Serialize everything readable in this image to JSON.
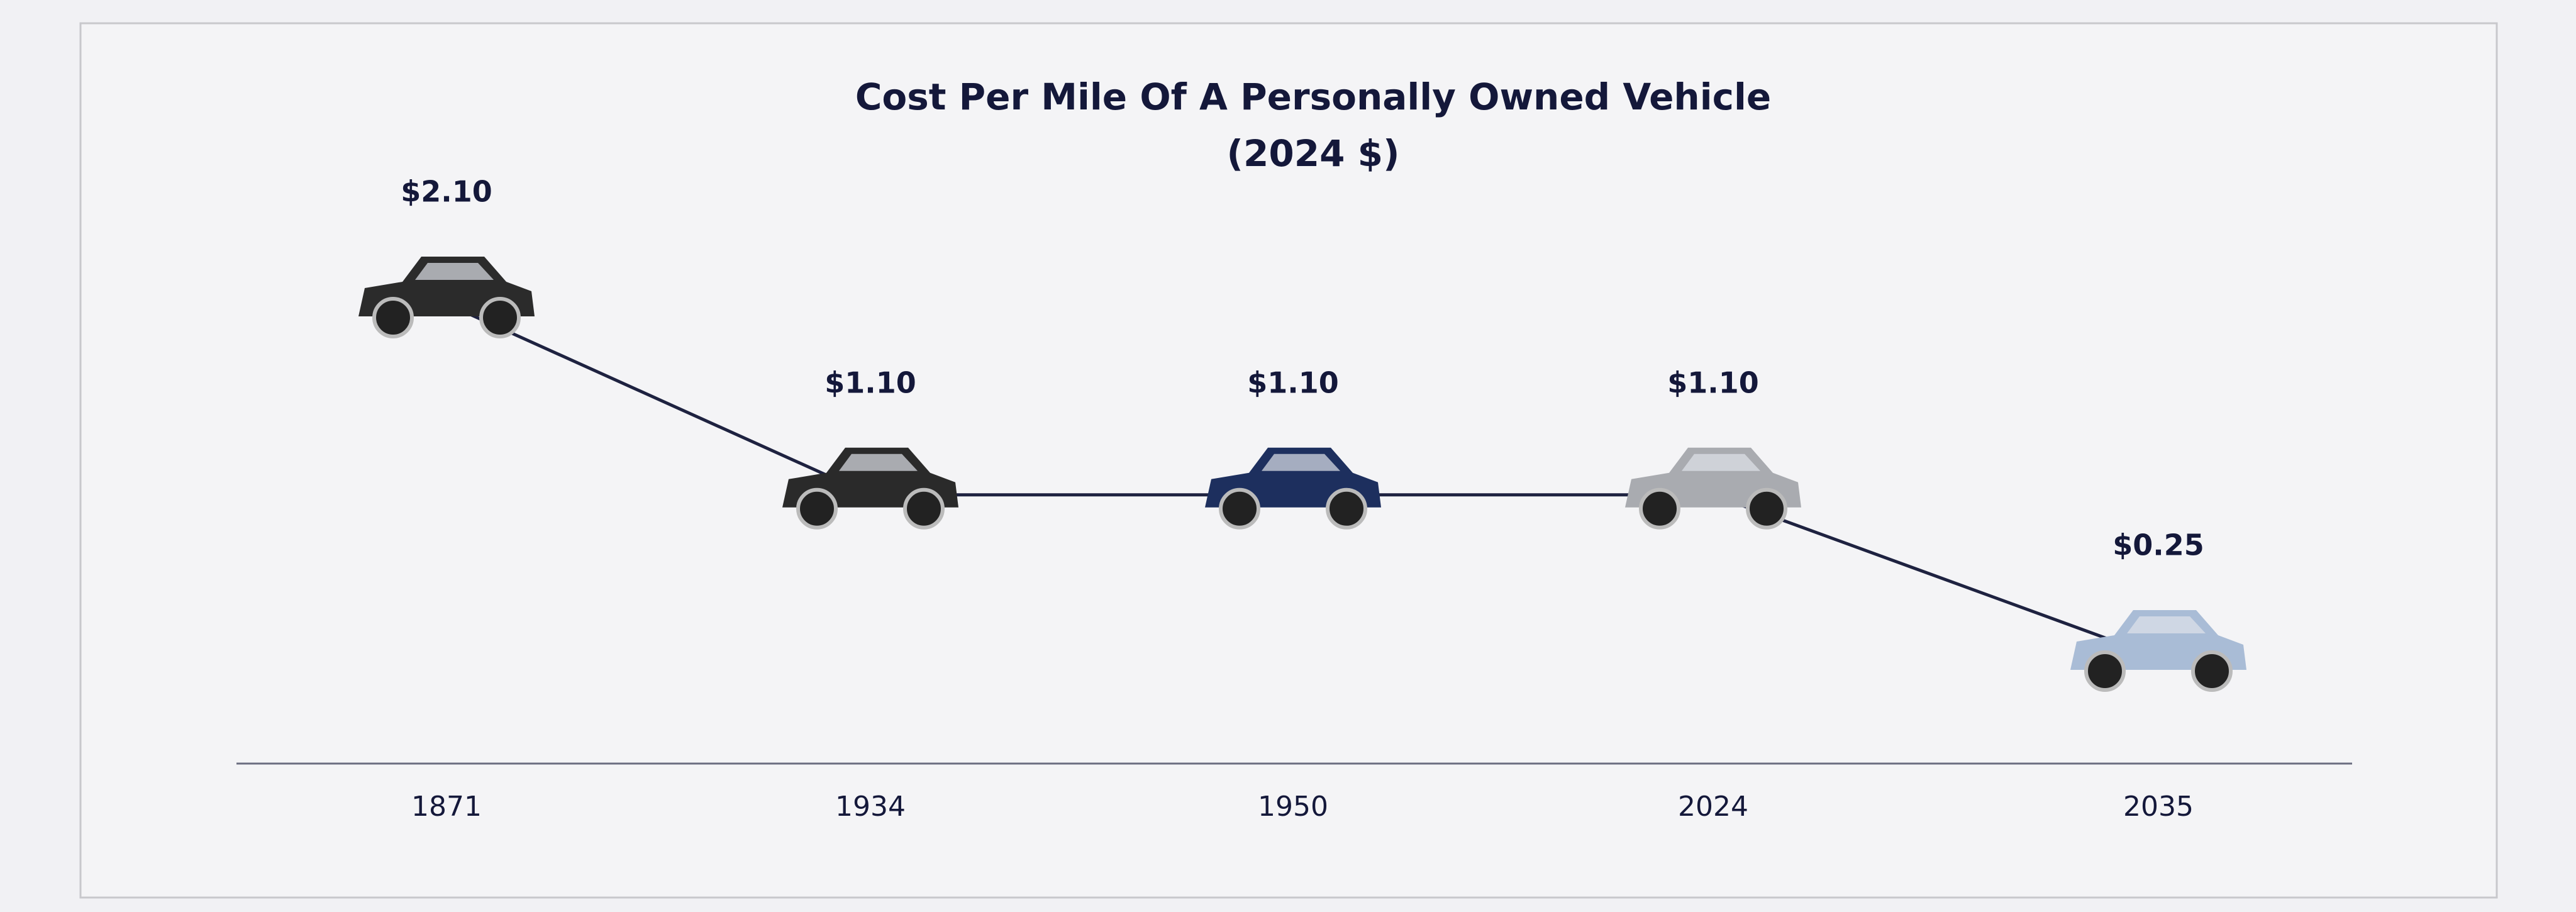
{
  "chart_data": {
    "type": "line",
    "title": "Cost Per Mile Of A Personally Owned Vehicle",
    "subtitle": "(2024 $)",
    "categories": [
      "1871",
      "1934",
      "1950",
      "2024",
      "2035"
    ],
    "series": [
      {
        "name": "Cost per mile",
        "color": "#1e2240",
        "values": [
          2.1,
          1.1,
          1.1,
          1.1,
          0.25
        ],
        "value_labels": [
          "$2.10",
          "$1.10",
          "$1.10",
          "$1.10",
          "$0.25"
        ]
      }
    ]
  }
}
